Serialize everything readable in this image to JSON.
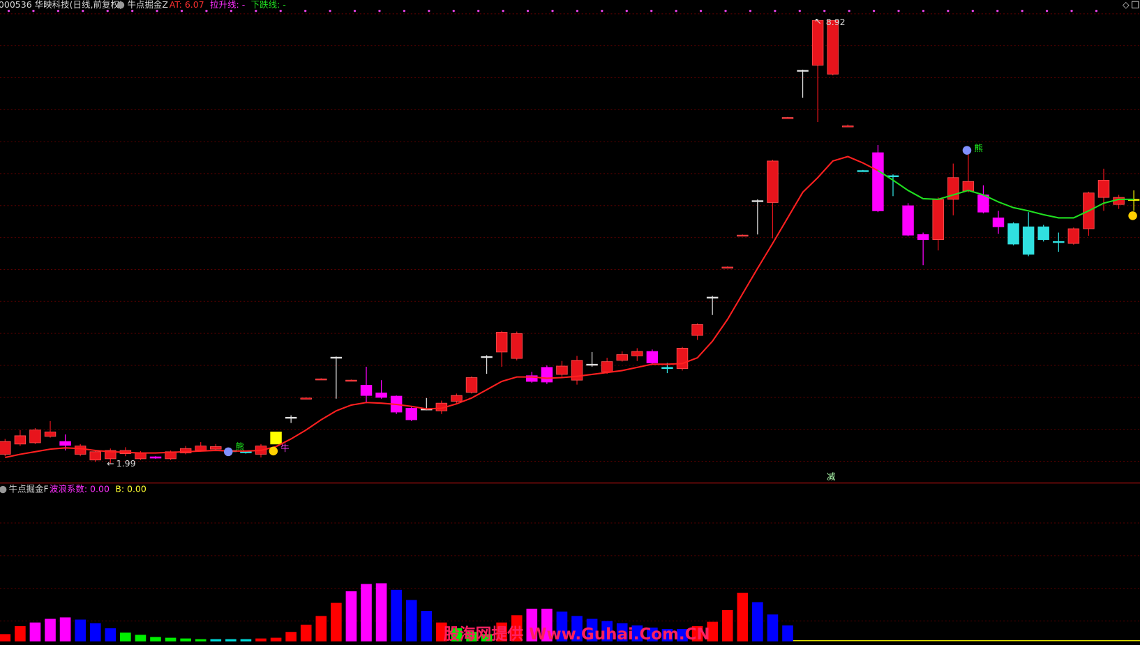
{
  "header": {
    "title": "000536 华映科技(日线,前复权)"
  },
  "chart_data": [
    {
      "type": "candlestick",
      "indicator": "牛点掘金Z",
      "readouts": [
        "AT: 6.07",
        "拉升线: -",
        "下跌线: -"
      ],
      "readout_colors": [
        "#ff3030",
        "#ff30ff",
        "#20e020"
      ],
      "ylim": [
        1.68,
        9.24
      ],
      "open": [
        2.13,
        2.29,
        2.31,
        2.41,
        2.33,
        2.13,
        2.04,
        2.06,
        2.14,
        2.06,
        2.09,
        2.06,
        2.15,
        2.19,
        2.21,
        2.19,
        2.17,
        2.13,
        2.29,
        2.71,
        3.01,
        3.31,
        3.65,
        3.29,
        3.21,
        3.09,
        3.04,
        2.85,
        2.84,
        2.81,
        2.96,
        3.1,
        3.66,
        3.73,
        3.63,
        3.36,
        3.49,
        3.38,
        3.29,
        3.54,
        3.42,
        3.6,
        3.67,
        3.74,
        3.49,
        3.47,
        3.99,
        4.59,
        5.06,
        5.56,
        6.1,
        6.07,
        7.4,
        8.14,
        8.22,
        8.08,
        7.27,
        6.57,
        6.85,
        6.49,
        6.02,
        5.57,
        5.49,
        6.12,
        6.25,
        6.19,
        5.83,
        5.74,
        5.69,
        5.69,
        5.46,
        5.43,
        5.66,
        6.15,
        6.04,
        6.12
      ],
      "high": [
        2.37,
        2.51,
        2.54,
        2.65,
        2.44,
        2.29,
        2.19,
        2.22,
        2.24,
        2.18,
        2.1,
        2.19,
        2.26,
        2.32,
        2.29,
        2.22,
        2.19,
        2.29,
        2.48,
        2.74,
        3.02,
        3.32,
        3.66,
        3.3,
        3.5,
        3.29,
        3.05,
        2.88,
        3.01,
        2.97,
        3.08,
        3.35,
        3.68,
        4.06,
        4.05,
        3.42,
        3.52,
        3.59,
        3.67,
        3.73,
        3.64,
        3.74,
        3.79,
        3.77,
        3.56,
        3.81,
        4.18,
        4.61,
        5.07,
        5.57,
        6.12,
        6.74,
        7.41,
        8.15,
        8.92,
        8.92,
        7.29,
        6.58,
        6.97,
        6.51,
        6.06,
        5.6,
        6.15,
        6.68,
        6.83,
        6.34,
        5.94,
        5.76,
        5.92,
        5.72,
        5.6,
        5.68,
        6.24,
        6.6,
        6.19,
        6.26
      ],
      "low": [
        2.1,
        2.26,
        2.29,
        2.39,
        2.19,
        2.1,
        2.01,
        1.99,
        2.1,
        2.04,
        2.06,
        2.04,
        2.13,
        2.17,
        2.18,
        2.15,
        2.14,
        2.08,
        2.29,
        2.62,
        3.0,
        3.3,
        3.0,
        3.27,
        2.93,
        3.0,
        2.76,
        2.65,
        2.82,
        2.76,
        2.93,
        3.08,
        3.39,
        3.5,
        3.6,
        3.25,
        3.23,
        3.34,
        3.22,
        3.5,
        3.39,
        3.58,
        3.59,
        3.54,
        3.4,
        3.44,
        3.92,
        4.31,
        5.05,
        5.55,
        5.57,
        5.51,
        7.39,
        7.71,
        7.33,
        8.06,
        7.26,
        6.56,
        5.92,
        6.17,
        5.54,
        5.09,
        5.32,
        5.87,
        6.23,
        5.9,
        5.58,
        5.4,
        5.23,
        5.46,
        5.3,
        5.41,
        5.55,
        5.94,
        5.97,
        5.94
      ],
      "close": [
        2.33,
        2.42,
        2.51,
        2.48,
        2.27,
        2.26,
        2.17,
        2.19,
        2.19,
        2.15,
        2.07,
        2.17,
        2.22,
        2.26,
        2.25,
        2.17,
        2.16,
        2.26,
        2.48,
        2.71,
        3.01,
        3.31,
        3.65,
        3.29,
        3.05,
        3.02,
        2.79,
        2.67,
        2.84,
        2.93,
        3.05,
        3.33,
        3.66,
        4.04,
        4.02,
        3.27,
        3.26,
        3.51,
        3.6,
        3.54,
        3.58,
        3.69,
        3.74,
        3.56,
        3.47,
        3.79,
        4.16,
        4.59,
        5.06,
        5.56,
        6.1,
        6.72,
        7.4,
        8.14,
        8.92,
        8.92,
        7.27,
        6.57,
        5.94,
        6.48,
        5.56,
        5.49,
        6.12,
        6.46,
        6.4,
        5.92,
        5.69,
        5.42,
        5.26,
        5.49,
        5.45,
        5.66,
        6.22,
        6.42,
        6.15,
        6.12
      ],
      "colors": [
        "#e8141c",
        "#e8141c",
        "#e8141c",
        "#e8141c",
        "#ff00ff",
        "#e8141c",
        "#e8141c",
        "#e8141c",
        "#e8141c",
        "#e8141c",
        "#ff00ff",
        "#e8141c",
        "#e8141c",
        "#e8141c",
        "#e8141c",
        "#30e0e0",
        "#30e0e0",
        "#e8141c",
        "#ffff00",
        "#e0e0e0",
        "#e8141c",
        "#e8141c",
        "#e0e0e0",
        "#e8141c",
        "#ff00ff",
        "#ff00ff",
        "#ff00ff",
        "#ff00ff",
        "#e0e0e0",
        "#e8141c",
        "#e8141c",
        "#e8141c",
        "#e0e0e0",
        "#e8141c",
        "#e8141c",
        "#ff00ff",
        "#ff00ff",
        "#e8141c",
        "#e8141c",
        "#e0e0e0",
        "#e8141c",
        "#e8141c",
        "#e8141c",
        "#ff00ff",
        "#30e0e0",
        "#e8141c",
        "#e8141c",
        "#e0e0e0",
        "#e8141c",
        "#e8141c",
        "#e0e0e0",
        "#e8141c",
        "#e8141c",
        "#e0e0e0",
        "#e8141c",
        "#e8141c",
        "#e8141c",
        "#30e0e0",
        "#ff00ff",
        "#30e0e0",
        "#ff00ff",
        "#ff00ff",
        "#e8141c",
        "#e8141c",
        "#e8141c",
        "#ff00ff",
        "#ff00ff",
        "#30e0e0",
        "#30e0e0",
        "#30e0e0",
        "#30e0e0",
        "#e8141c",
        "#e8141c",
        "#e8141c",
        "#e8141c",
        "#ffff00"
      ],
      "lines": [
        {
          "color": "#ff2020",
          "values": [
            2.08,
            2.13,
            2.17,
            2.21,
            2.23,
            2.22,
            2.19,
            2.17,
            2.16,
            2.15,
            2.15,
            2.16,
            2.17,
            2.18,
            2.19,
            2.18,
            2.18,
            2.19,
            2.25,
            2.37,
            2.51,
            2.67,
            2.81,
            2.9,
            2.94,
            2.93,
            2.91,
            2.88,
            2.84,
            2.85,
            2.92,
            3.01,
            3.14,
            3.27,
            3.34,
            3.34,
            3.32,
            3.33,
            3.35,
            3.38,
            3.41,
            3.44,
            3.49,
            3.54,
            3.54,
            3.55,
            3.64,
            3.9,
            4.24,
            4.64,
            5.04,
            5.43,
            5.83,
            6.23,
            6.46,
            6.72,
            6.79,
            6.69,
            6.57,
            null,
            null,
            null,
            null,
            null,
            null,
            null,
            null,
            null,
            null,
            null,
            null,
            null,
            null,
            null,
            null,
            null
          ]
        },
        {
          "color": "#20e020",
          "values": [
            null,
            null,
            null,
            null,
            null,
            null,
            null,
            null,
            null,
            null,
            null,
            null,
            null,
            null,
            null,
            null,
            null,
            null,
            null,
            null,
            null,
            null,
            null,
            null,
            null,
            null,
            null,
            null,
            null,
            null,
            null,
            null,
            null,
            null,
            null,
            null,
            null,
            null,
            null,
            null,
            null,
            null,
            null,
            null,
            null,
            null,
            null,
            null,
            null,
            null,
            null,
            null,
            null,
            null,
            null,
            null,
            null,
            null,
            6.57,
            6.42,
            6.26,
            6.13,
            6.12,
            6.19,
            6.26,
            6.19,
            6.08,
            5.99,
            5.94,
            5.88,
            5.83,
            5.83,
            5.94,
            6.06,
            6.12,
            6.12
          ]
        }
      ],
      "annotations": [
        "8.92",
        "1.99",
        "熊",
        "牛",
        "熊",
        "减"
      ]
    },
    {
      "type": "bar",
      "indicator": "牛点掘金F",
      "readouts": [
        "波浪系数: 0.00",
        "B: 0.00"
      ],
      "readout_colors": [
        "#ff30ff",
        "#ffff30"
      ],
      "ylim": [
        0,
        218
      ],
      "values": [
        10,
        21,
        26,
        31,
        33,
        30,
        25,
        18,
        12,
        9,
        6,
        5,
        4,
        3,
        3,
        3,
        3,
        4,
        5,
        13,
        23,
        35,
        53,
        69,
        79,
        80,
        71,
        57,
        42,
        26,
        18,
        13,
        10,
        26,
        36,
        45,
        45,
        41,
        35,
        31,
        28,
        25,
        22,
        19,
        17,
        17,
        21,
        27,
        43,
        67,
        54,
        37,
        22,
        null,
        null,
        null,
        null,
        null,
        null,
        null,
        null,
        null,
        null,
        null,
        null,
        null,
        null,
        null,
        null,
        null,
        null,
        null,
        null
      ],
      "colors": [
        "#ff0000",
        "#ff0000",
        "#ff00ff",
        "#ff00ff",
        "#ff00ff",
        "#0000ff",
        "#0000ff",
        "#0000ff",
        "#00ee00",
        "#00ee00",
        "#00ee00",
        "#00ee00",
        "#00ee00",
        "#00ee00",
        "#00dddd",
        "#00dddd",
        "#00dddd",
        "#ff0000",
        "#ff0000",
        "#ff0000",
        "#ff0000",
        "#ff0000",
        "#ff0000",
        "#ff00ff",
        "#ff00ff",
        "#ff00ff",
        "#0000ff",
        "#0000ff",
        "#0000ff",
        "#ff0000",
        "#00ee00",
        "#00ee00",
        "#00ee00",
        "#ff0000",
        "#ff0000",
        "#ff00ff",
        "#ff00ff",
        "#0000ff",
        "#0000ff",
        "#0000ff",
        "#0000ff",
        "#0000ff",
        "#0000ff",
        "#0000ff",
        "#0000ff",
        "#0000ff",
        "#ff0000",
        "#ff0000",
        "#ff0000",
        "#ff0000",
        "#0000ff",
        "#0000ff",
        "#0000ff",
        "#000000",
        "#000000",
        "#000000",
        "#000000",
        "#000000",
        "#000000",
        "#000000",
        "#000000",
        "#000000",
        "#000000",
        "#000000",
        "#000000",
        "#000000",
        "#000000",
        "#000000",
        "#000000",
        "#000000",
        "#000000",
        "#000000",
        "#000000",
        "#000000",
        "#000000",
        "#000000"
      ],
      "watermark": "股海网提供 Www.Guhai.Com.CN"
    }
  ]
}
